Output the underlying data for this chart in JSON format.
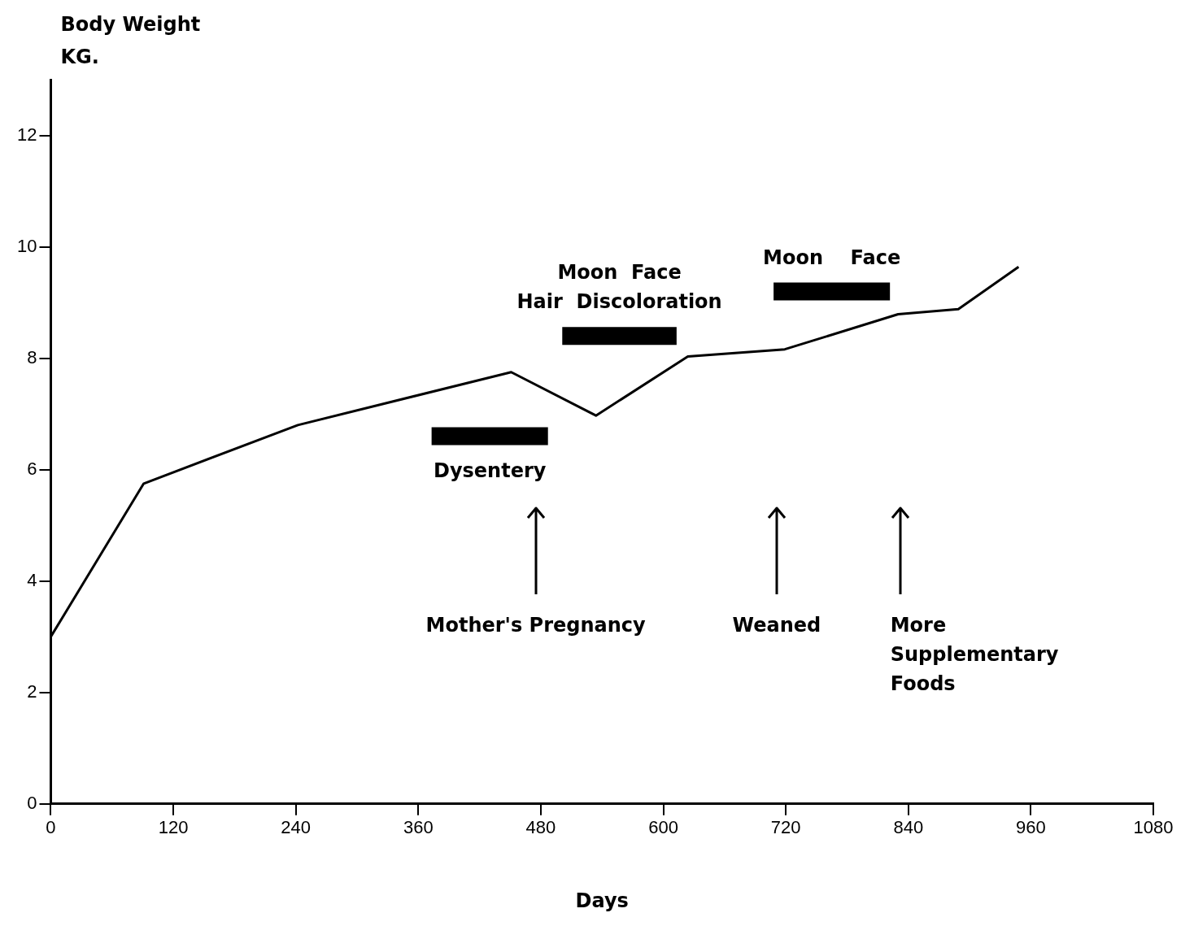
{
  "chart_data": {
    "type": "line",
    "xlabel": "Days",
    "ylabel": "Body Weight\nKG.",
    "xlim": [
      0,
      1080
    ],
    "xticks": [
      0,
      120,
      240,
      360,
      480,
      600,
      720,
      840,
      960,
      1080
    ],
    "ylim": [
      0,
      13
    ],
    "yticks": [
      0,
      2,
      4,
      6,
      8,
      10,
      12
    ],
    "grid": false,
    "legend": false,
    "marker": "none",
    "line_style": "solid",
    "series": [
      {
        "color": "#000000",
        "x": [
          0,
          91,
          242,
          451,
          534,
          624,
          719,
          830,
          889,
          948
        ],
        "values": [
          3.0,
          5.75,
          6.8,
          7.75,
          6.97,
          8.03,
          8.16,
          8.79,
          8.88,
          9.64
        ]
      },
      {
        "color": "#000000",
        "x": [
          373,
          487
        ],
        "values": [
          6.6,
          6.6
        ]
      },
      {
        "color": "#000000",
        "x": [
          501,
          613
        ],
        "values": [
          8.4,
          8.4
        ]
      },
      {
        "color": "#000000",
        "x": [
          708,
          822
        ],
        "values": [
          9.2,
          9.2
        ]
      }
    ],
    "annotations": [
      {
        "text": "Dysentery",
        "x": 430,
        "y": 6.6
      },
      {
        "text": "Moon  Face\nHair  Discoloration",
        "x": 557,
        "y": 8.4
      },
      {
        "text": "Moon    Face",
        "x": 765,
        "y": 9.2
      }
    ],
    "ref_lines": [
      {
        "axis": "x",
        "value": 475,
        "label": "Mother's Pregnancy",
        "color": "#000000"
      },
      {
        "axis": "x",
        "value": 711,
        "label": "Weaned",
        "color": "#000000"
      },
      {
        "axis": "x",
        "value": 832,
        "label": "More\nSupplementary\nFoods",
        "color": "#000000"
      }
    ]
  }
}
